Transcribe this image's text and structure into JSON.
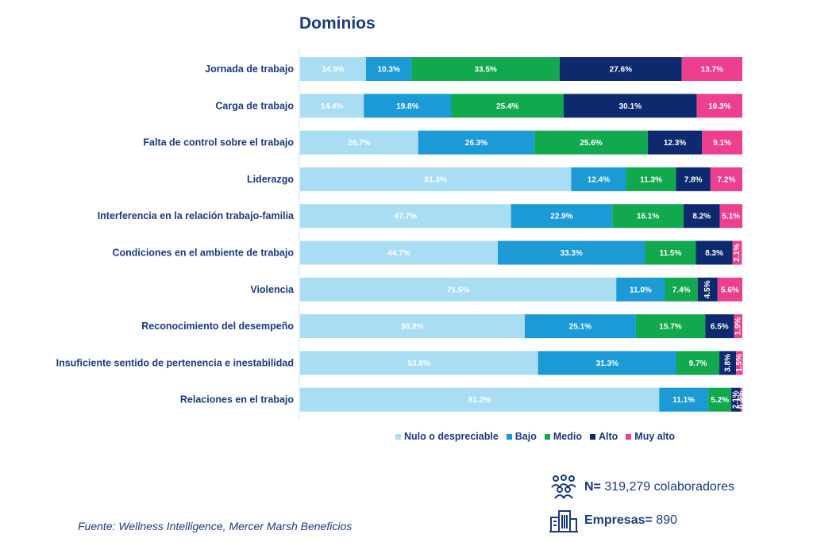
{
  "chart_data": {
    "type": "bar",
    "orientation": "horizontal",
    "stacked": true,
    "title": "Dominios",
    "categories": [
      "Jornada de trabajo",
      "Carga de trabajo",
      "Falta de control sobre el trabajo",
      "Liderazgo",
      "Interferencia en la relación trabajo-familia",
      "Condiciones en el ambiente de trabajo",
      "Violencia",
      "Reconocimiento del desempeño",
      "Insuficiente sentido de pertenencia e inestabilidad",
      "Relaciones en el trabajo"
    ],
    "series": [
      {
        "name": "Nulo o despreciable",
        "color": "#a9ddf4",
        "values": [
          14.9,
          14.4,
          26.7,
          61.3,
          47.7,
          44.7,
          71.5,
          50.8,
          53.8,
          81.2
        ]
      },
      {
        "name": "Bajo",
        "color": "#1b9ad6",
        "values": [
          10.3,
          19.8,
          26.3,
          12.4,
          22.9,
          33.3,
          11.0,
          25.1,
          31.3,
          11.1
        ]
      },
      {
        "name": "Medio",
        "color": "#11a84e",
        "values": [
          33.5,
          25.4,
          25.6,
          11.3,
          16.1,
          11.5,
          7.4,
          15.7,
          9.7,
          5.2
        ]
      },
      {
        "name": "Alto",
        "color": "#0e2a6e",
        "values": [
          27.6,
          30.1,
          12.3,
          7.8,
          8.2,
          8.3,
          4.5,
          6.5,
          3.8,
          2.1
        ]
      },
      {
        "name": "Muy alto",
        "color": "#ec3f8d",
        "values": [
          13.7,
          10.3,
          9.1,
          7.2,
          5.1,
          2.1,
          5.6,
          1.9,
          1.5,
          0.4
        ]
      }
    ],
    "xlim": [
      0,
      100
    ],
    "unit": "%",
    "legend_position": "bottom",
    "grid": false
  },
  "stats": {
    "collaborators_key": "N=",
    "collaborators_value": " 319,279 colaboradores",
    "companies_key": "Empresas=",
    "companies_value": " 890"
  },
  "source": "Fuente: Wellness Intelligence, Mercer Marsh Beneficios",
  "icons": {
    "collaborators": "people-group-icon",
    "companies": "buildings-icon"
  }
}
